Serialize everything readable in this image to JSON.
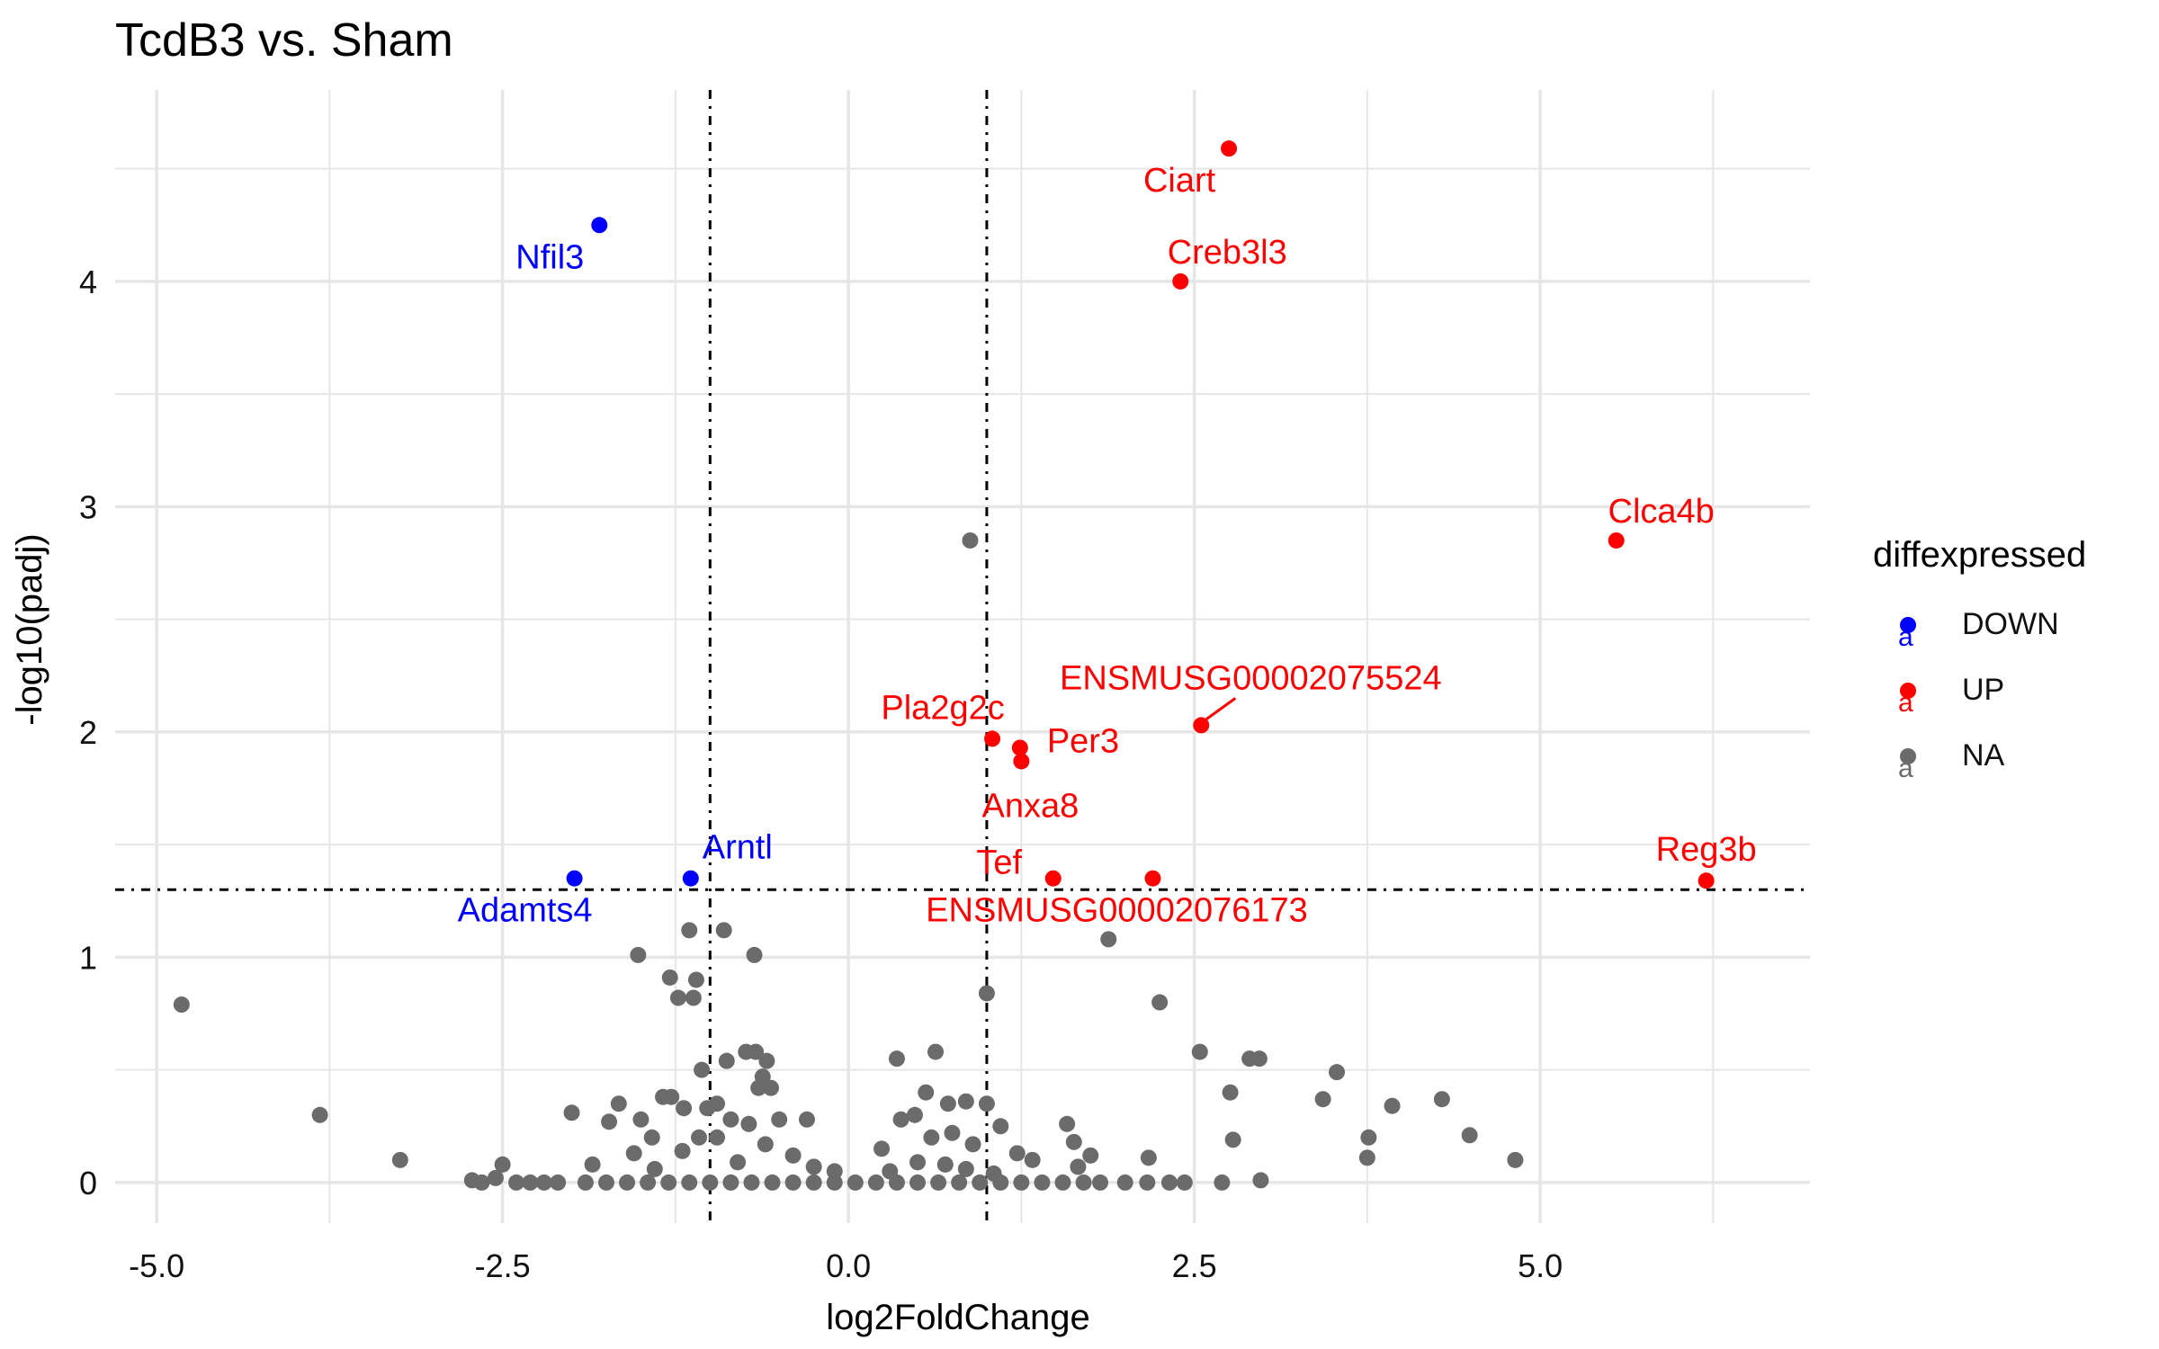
{
  "chart_data": {
    "type": "scatter",
    "title": "TcdB3 vs. Sham",
    "xlabel": "log2FoldChange",
    "ylabel": "-log10(padj)",
    "xlim": [
      -5.3,
      6.95
    ],
    "ylim": [
      -0.18,
      4.85
    ],
    "x_ticks": [
      -5.0,
      -2.5,
      0.0,
      2.5,
      5.0
    ],
    "x_tick_labels": [
      "-5.0",
      "-2.5",
      "0.0",
      "2.5",
      "5.0"
    ],
    "y_ticks": [
      0,
      1,
      2,
      3,
      4
    ],
    "y_tick_labels": [
      "0",
      "1",
      "2",
      "3",
      "4"
    ],
    "x_minor": [
      -3.75,
      -1.25,
      1.25,
      3.75,
      6.25
    ],
    "y_minor": [
      0.5,
      1.5,
      2.5,
      3.5,
      4.5
    ],
    "grid": true,
    "vlines": [
      -1,
      1
    ],
    "hline": 1.3,
    "colors": {
      "DOWN": "#0000ff",
      "UP": "#ff0000",
      "NA": "#6b6b6b",
      "grid": "#e6e6e6",
      "threshold": "#000000"
    },
    "legend": {
      "title": "diffexpressed",
      "position": "right",
      "entries": [
        {
          "name": "DOWN",
          "color": "#0000ff"
        },
        {
          "name": "UP",
          "color": "#ff0000"
        },
        {
          "name": "NA",
          "color": "#6b6b6b"
        }
      ]
    },
    "series": [
      {
        "name": "DOWN",
        "points": [
          {
            "x": -1.8,
            "y": 4.25,
            "label": "Nfil3"
          },
          {
            "x": -1.98,
            "y": 1.35,
            "label": "Adamts4"
          },
          {
            "x": -1.14,
            "y": 1.35,
            "label": "Arntl"
          }
        ]
      },
      {
        "name": "UP",
        "points": [
          {
            "x": 2.75,
            "y": 4.59,
            "label": "Ciart"
          },
          {
            "x": 2.4,
            "y": 4.0,
            "label": "Creb3l3"
          },
          {
            "x": 5.55,
            "y": 2.85,
            "label": "Clca4b"
          },
          {
            "x": 2.55,
            "y": 2.03,
            "label": "ENSMUSG00002075524"
          },
          {
            "x": 1.04,
            "y": 1.97,
            "label": "Pla2g2c"
          },
          {
            "x": 1.24,
            "y": 1.93,
            "label": "Per3"
          },
          {
            "x": 1.25,
            "y": 1.87,
            "label": "Anxa8"
          },
          {
            "x": 1.48,
            "y": 1.35,
            "label": "Tef"
          },
          {
            "x": 2.2,
            "y": 1.35,
            "label": "ENSMUSG00002076173"
          },
          {
            "x": 6.2,
            "y": 1.34,
            "label": "Reg3b"
          }
        ]
      },
      {
        "name": "NA",
        "points": [
          {
            "x": 0.88,
            "y": 2.85
          },
          {
            "x": 1.88,
            "y": 1.08
          },
          {
            "x": 1.0,
            "y": 0.84
          },
          {
            "x": -4.82,
            "y": 0.79
          },
          {
            "x": -3.82,
            "y": 0.3
          },
          {
            "x": -3.24,
            "y": 0.1
          },
          {
            "x": -1.15,
            "y": 1.12
          },
          {
            "x": -0.9,
            "y": 1.12
          },
          {
            "x": -1.52,
            "y": 1.01
          },
          {
            "x": -0.68,
            "y": 1.01
          },
          {
            "x": -1.29,
            "y": 0.91
          },
          {
            "x": -1.1,
            "y": 0.9
          },
          {
            "x": -1.23,
            "y": 0.82
          },
          {
            "x": -1.12,
            "y": 0.82
          },
          {
            "x": 2.25,
            "y": 0.8
          },
          {
            "x": 2.54,
            "y": 0.58
          },
          {
            "x": 2.9,
            "y": 0.55
          },
          {
            "x": 2.97,
            "y": 0.55
          },
          {
            "x": 3.53,
            "y": 0.49
          },
          {
            "x": 2.76,
            "y": 0.4
          },
          {
            "x": 3.43,
            "y": 0.37
          },
          {
            "x": 4.29,
            "y": 0.37
          },
          {
            "x": 3.93,
            "y": 0.34
          },
          {
            "x": 3.76,
            "y": 0.2
          },
          {
            "x": 4.49,
            "y": 0.21
          },
          {
            "x": 3.75,
            "y": 0.11
          },
          {
            "x": 4.82,
            "y": 0.1
          },
          {
            "x": 2.78,
            "y": 0.19
          },
          {
            "x": 2.17,
            "y": 0.11
          },
          {
            "x": 2.98,
            "y": 0.01
          },
          {
            "x": 2.7,
            "y": 0.0
          },
          {
            "x": 2.43,
            "y": 0.0
          },
          {
            "x": 2.32,
            "y": 0.0
          },
          {
            "x": 2.16,
            "y": 0.0
          },
          {
            "x": 2.0,
            "y": 0.0
          },
          {
            "x": 1.82,
            "y": 0.0
          },
          {
            "x": 1.63,
            "y": 0.18
          },
          {
            "x": 1.66,
            "y": 0.07
          },
          {
            "x": 1.75,
            "y": 0.12
          },
          {
            "x": 1.58,
            "y": 0.26
          },
          {
            "x": 1.33,
            "y": 0.1
          },
          {
            "x": 1.22,
            "y": 0.13
          },
          {
            "x": 0.35,
            "y": 0.55
          },
          {
            "x": 0.63,
            "y": 0.58
          },
          {
            "x": 0.56,
            "y": 0.4
          },
          {
            "x": 0.72,
            "y": 0.35
          },
          {
            "x": 0.48,
            "y": 0.3
          },
          {
            "x": 0.38,
            "y": 0.28
          },
          {
            "x": 0.24,
            "y": 0.15
          },
          {
            "x": 0.85,
            "y": 0.36
          },
          {
            "x": 1.0,
            "y": 0.35
          },
          {
            "x": 0.75,
            "y": 0.22
          },
          {
            "x": 0.6,
            "y": 0.2
          },
          {
            "x": 0.9,
            "y": 0.17
          },
          {
            "x": 1.1,
            "y": 0.25
          },
          {
            "x": 0.3,
            "y": 0.05
          },
          {
            "x": 0.5,
            "y": 0.09
          },
          {
            "x": 0.7,
            "y": 0.08
          },
          {
            "x": 0.85,
            "y": 0.06
          },
          {
            "x": 1.05,
            "y": 0.04
          },
          {
            "x": -0.74,
            "y": 0.58
          },
          {
            "x": -0.67,
            "y": 0.58
          },
          {
            "x": -0.88,
            "y": 0.54
          },
          {
            "x": -0.59,
            "y": 0.54
          },
          {
            "x": -1.06,
            "y": 0.5
          },
          {
            "x": -0.62,
            "y": 0.47
          },
          {
            "x": -0.65,
            "y": 0.42
          },
          {
            "x": -0.56,
            "y": 0.42
          },
          {
            "x": -1.28,
            "y": 0.38
          },
          {
            "x": -1.34,
            "y": 0.38
          },
          {
            "x": -0.95,
            "y": 0.35
          },
          {
            "x": -1.19,
            "y": 0.33
          },
          {
            "x": -1.02,
            "y": 0.33
          },
          {
            "x": -1.66,
            "y": 0.35
          },
          {
            "x": -2.0,
            "y": 0.31
          },
          {
            "x": -1.5,
            "y": 0.28
          },
          {
            "x": -1.73,
            "y": 0.27
          },
          {
            "x": -0.85,
            "y": 0.28
          },
          {
            "x": -0.72,
            "y": 0.26
          },
          {
            "x": -0.5,
            "y": 0.28
          },
          {
            "x": -0.3,
            "y": 0.28
          },
          {
            "x": -1.42,
            "y": 0.2
          },
          {
            "x": -1.08,
            "y": 0.2
          },
          {
            "x": -0.95,
            "y": 0.2
          },
          {
            "x": -1.2,
            "y": 0.14
          },
          {
            "x": -0.6,
            "y": 0.17
          },
          {
            "x": -1.55,
            "y": 0.13
          },
          {
            "x": -0.4,
            "y": 0.12
          },
          {
            "x": -1.85,
            "y": 0.08
          },
          {
            "x": -0.8,
            "y": 0.09
          },
          {
            "x": -0.25,
            "y": 0.07
          },
          {
            "x": -1.4,
            "y": 0.06
          },
          {
            "x": -0.1,
            "y": 0.05
          },
          {
            "x": -2.5,
            "y": 0.08
          },
          {
            "x": -2.55,
            "y": 0.02
          },
          {
            "x": -2.72,
            "y": 0.01
          },
          {
            "x": -2.65,
            "y": 0.0
          },
          {
            "x": -2.4,
            "y": 0.0
          },
          {
            "x": -2.3,
            "y": 0.0
          },
          {
            "x": -2.2,
            "y": 0.0
          },
          {
            "x": -2.1,
            "y": 0.0
          },
          {
            "x": -1.9,
            "y": 0.0
          },
          {
            "x": -1.75,
            "y": 0.0
          },
          {
            "x": -1.6,
            "y": 0.0
          },
          {
            "x": -1.45,
            "y": 0.0
          },
          {
            "x": -1.3,
            "y": 0.0
          },
          {
            "x": -1.15,
            "y": 0.0
          },
          {
            "x": -1.0,
            "y": 0.0
          },
          {
            "x": -0.85,
            "y": 0.0
          },
          {
            "x": -0.7,
            "y": 0.0
          },
          {
            "x": -0.55,
            "y": 0.0
          },
          {
            "x": -0.4,
            "y": 0.0
          },
          {
            "x": -0.25,
            "y": 0.0
          },
          {
            "x": -0.1,
            "y": 0.0
          },
          {
            "x": 0.05,
            "y": 0.0
          },
          {
            "x": 0.2,
            "y": 0.0
          },
          {
            "x": 0.35,
            "y": 0.0
          },
          {
            "x": 0.5,
            "y": 0.0
          },
          {
            "x": 0.65,
            "y": 0.0
          },
          {
            "x": 0.8,
            "y": 0.0
          },
          {
            "x": 0.95,
            "y": 0.0
          },
          {
            "x": 1.1,
            "y": 0.0
          },
          {
            "x": 1.25,
            "y": 0.0
          },
          {
            "x": 1.4,
            "y": 0.0
          },
          {
            "x": 1.55,
            "y": 0.0
          },
          {
            "x": 1.7,
            "y": 0.0
          }
        ]
      }
    ]
  }
}
